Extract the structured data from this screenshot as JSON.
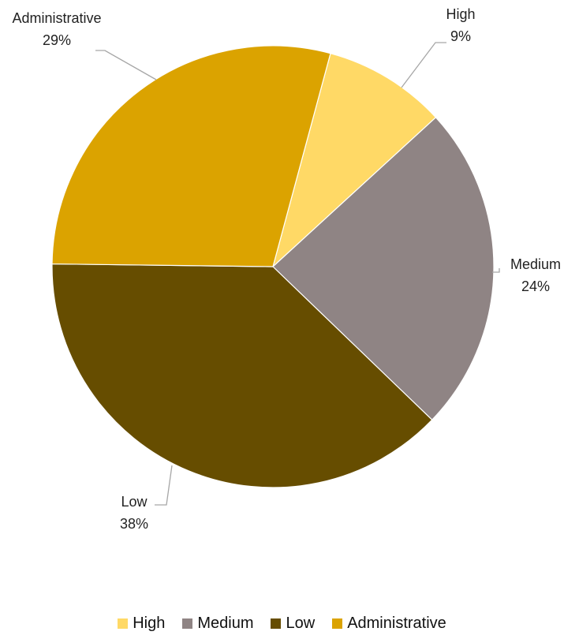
{
  "chart_data": {
    "type": "pie",
    "slices": [
      {
        "label": "High",
        "value": 9,
        "display": "9%",
        "color": "#FFD966"
      },
      {
        "label": "Medium",
        "value": 24,
        "display": "24%",
        "color": "#8F8484"
      },
      {
        "label": "Low",
        "value": 38,
        "display": "38%",
        "color": "#664D00"
      },
      {
        "label": "Administrative",
        "value": 29,
        "display": "29%",
        "color": "#DBA300"
      }
    ],
    "legend_position": "bottom",
    "leader_line_color": "#A6A6A6"
  }
}
